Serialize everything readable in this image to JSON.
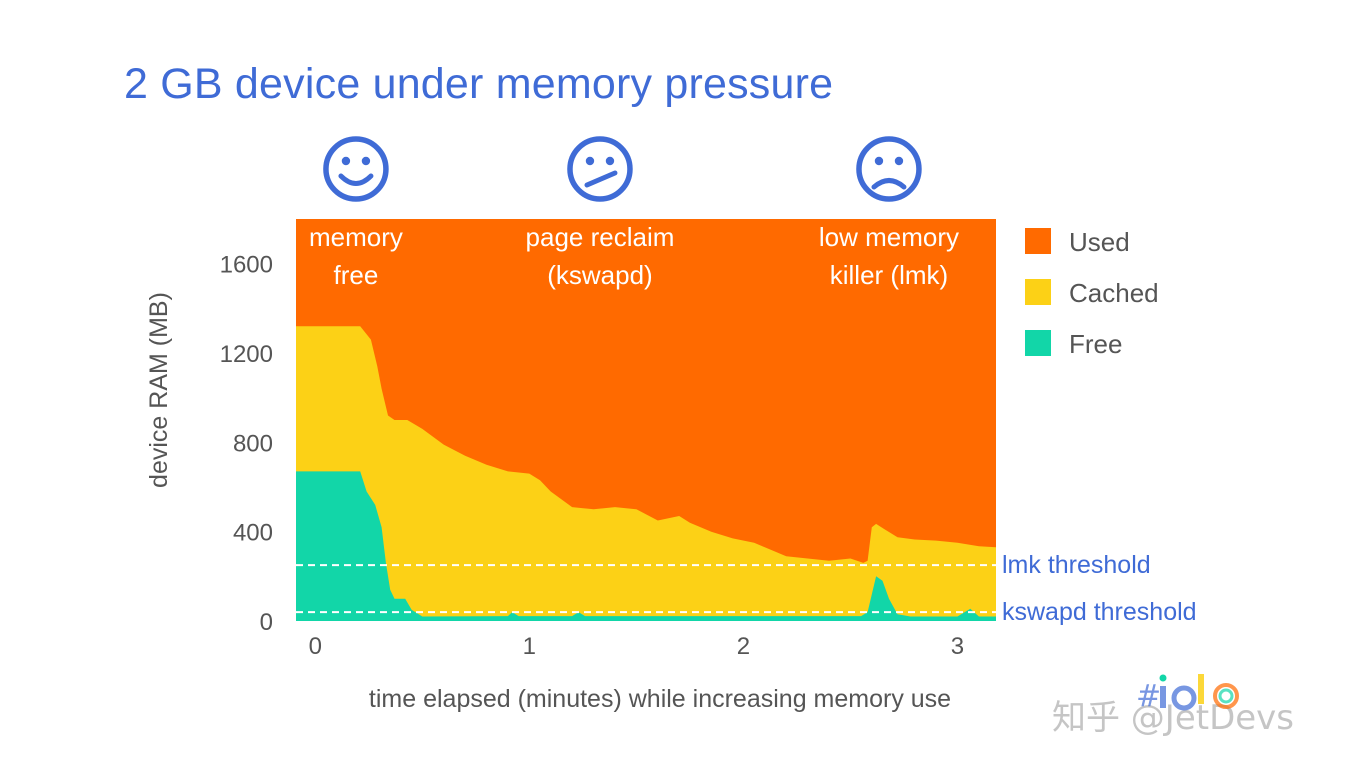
{
  "title": "2 GB device under memory pressure",
  "watermark": "知乎 @JetDevs",
  "colors": {
    "used": "#ff6a00",
    "cached": "#fcd116",
    "free": "#12d6a8",
    "accent": "#3f6bd6",
    "text": "#555555"
  },
  "faces": [
    {
      "name": "happy-face-icon",
      "x": 0.19
    },
    {
      "name": "uneasy-face-icon",
      "x": 1.33
    },
    {
      "name": "sad-face-icon",
      "x": 2.68
    }
  ],
  "chart_data": {
    "type": "area",
    "stacked": true,
    "title": "",
    "xlabel": "time elapsed (minutes) while increasing memory use",
    "ylabel": "device RAM (MB)",
    "xlim": [
      -0.09,
      3.18
    ],
    "ylim": [
      0,
      1800
    ],
    "xticks": [
      0,
      1,
      2,
      3
    ],
    "yticks": [
      0,
      400,
      800,
      1200,
      1600
    ],
    "legend_position": "right",
    "legend": [
      "Used",
      "Cached",
      "Free"
    ],
    "total_mb": 1800,
    "phases": [
      {
        "x": 0.19,
        "lines": [
          "memory",
          "free"
        ]
      },
      {
        "x": 1.33,
        "lines": [
          "page reclaim",
          "(kswapd)"
        ]
      },
      {
        "x": 2.68,
        "lines": [
          "low memory",
          "killer (lmk)"
        ]
      }
    ],
    "thresholds": [
      {
        "name": "lmk threshold",
        "value": 250
      },
      {
        "name": "kswapd threshold",
        "value": 40
      }
    ],
    "series": [
      {
        "name": "Free",
        "points": [
          [
            -0.09,
            670
          ],
          [
            0.21,
            670
          ],
          [
            0.24,
            580
          ],
          [
            0.28,
            520
          ],
          [
            0.31,
            420
          ],
          [
            0.33,
            260
          ],
          [
            0.35,
            140
          ],
          [
            0.37,
            100
          ],
          [
            0.42,
            100
          ],
          [
            0.45,
            50
          ],
          [
            0.5,
            20
          ],
          [
            0.9,
            22
          ],
          [
            0.92,
            40
          ],
          [
            0.95,
            22
          ],
          [
            1.2,
            22
          ],
          [
            1.23,
            40
          ],
          [
            1.26,
            22
          ],
          [
            1.6,
            22
          ],
          [
            1.8,
            22
          ],
          [
            2.0,
            22
          ],
          [
            2.3,
            22
          ],
          [
            2.55,
            22
          ],
          [
            2.58,
            40
          ],
          [
            2.62,
            200
          ],
          [
            2.65,
            180
          ],
          [
            2.68,
            100
          ],
          [
            2.72,
            30
          ],
          [
            2.78,
            20
          ],
          [
            3.0,
            20
          ],
          [
            3.06,
            55
          ],
          [
            3.1,
            20
          ],
          [
            3.18,
            20
          ]
        ]
      },
      {
        "name": "Cached",
        "points": [
          [
            -0.09,
            1320
          ],
          [
            0.21,
            1320
          ],
          [
            0.26,
            1260
          ],
          [
            0.29,
            1140
          ],
          [
            0.31,
            1040
          ],
          [
            0.34,
            920
          ],
          [
            0.37,
            900
          ],
          [
            0.43,
            900
          ],
          [
            0.5,
            860
          ],
          [
            0.6,
            790
          ],
          [
            0.7,
            740
          ],
          [
            0.8,
            700
          ],
          [
            0.9,
            670
          ],
          [
            1.0,
            660
          ],
          [
            1.05,
            630
          ],
          [
            1.1,
            580
          ],
          [
            1.2,
            510
          ],
          [
            1.3,
            500
          ],
          [
            1.4,
            510
          ],
          [
            1.5,
            500
          ],
          [
            1.6,
            450
          ],
          [
            1.7,
            470
          ],
          [
            1.75,
            440
          ],
          [
            1.85,
            400
          ],
          [
            1.95,
            370
          ],
          [
            2.05,
            350
          ],
          [
            2.1,
            330
          ],
          [
            2.2,
            290
          ],
          [
            2.3,
            280
          ],
          [
            2.4,
            270
          ],
          [
            2.5,
            280
          ],
          [
            2.56,
            260
          ],
          [
            2.58,
            270
          ],
          [
            2.6,
            420
          ],
          [
            2.62,
            435
          ],
          [
            2.66,
            410
          ],
          [
            2.72,
            375
          ],
          [
            2.8,
            365
          ],
          [
            2.9,
            360
          ],
          [
            3.0,
            350
          ],
          [
            3.1,
            335
          ],
          [
            3.18,
            330
          ]
        ]
      }
    ]
  }
}
